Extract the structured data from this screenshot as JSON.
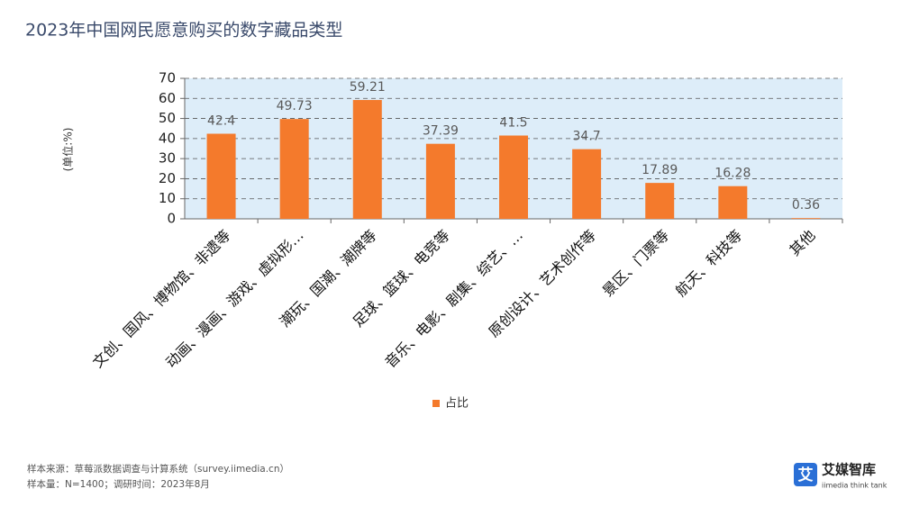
{
  "chart_data": {
    "type": "bar",
    "title": "2023年中国网民愿意购买的数字藏品类型",
    "y_label": "(单位:%)",
    "categories": [
      "文创、国风、博物馆、非遗等",
      "动画、漫画、游戏、虚拟形…",
      "潮玩、国潮、潮牌等",
      "足球、篮球、电竞等",
      "音乐、电影、剧集、综艺、…",
      "原创设计、艺术创作等",
      "景区、门票等",
      "航天、科技等",
      "其他"
    ],
    "series": [
      {
        "name": "占比",
        "color": "#f47a2c",
        "values": [
          42.4,
          49.73,
          59.21,
          37.39,
          41.5,
          34.7,
          17.89,
          16.28,
          0.36
        ]
      }
    ],
    "ylim": [
      0,
      70
    ],
    "yticks": [
      0,
      10,
      20,
      30,
      40,
      50,
      60,
      70
    ],
    "grid": true,
    "legend": "bottom",
    "notes": [
      "样本来源：草莓派数据调查与计算系统（survey.iimedia.cn）",
      "样本量：N=1400；调研时间：2023年8月"
    ],
    "logo": {
      "icon": "艾",
      "name": "艾媒智库",
      "tagline": "iimedia think tank"
    }
  }
}
